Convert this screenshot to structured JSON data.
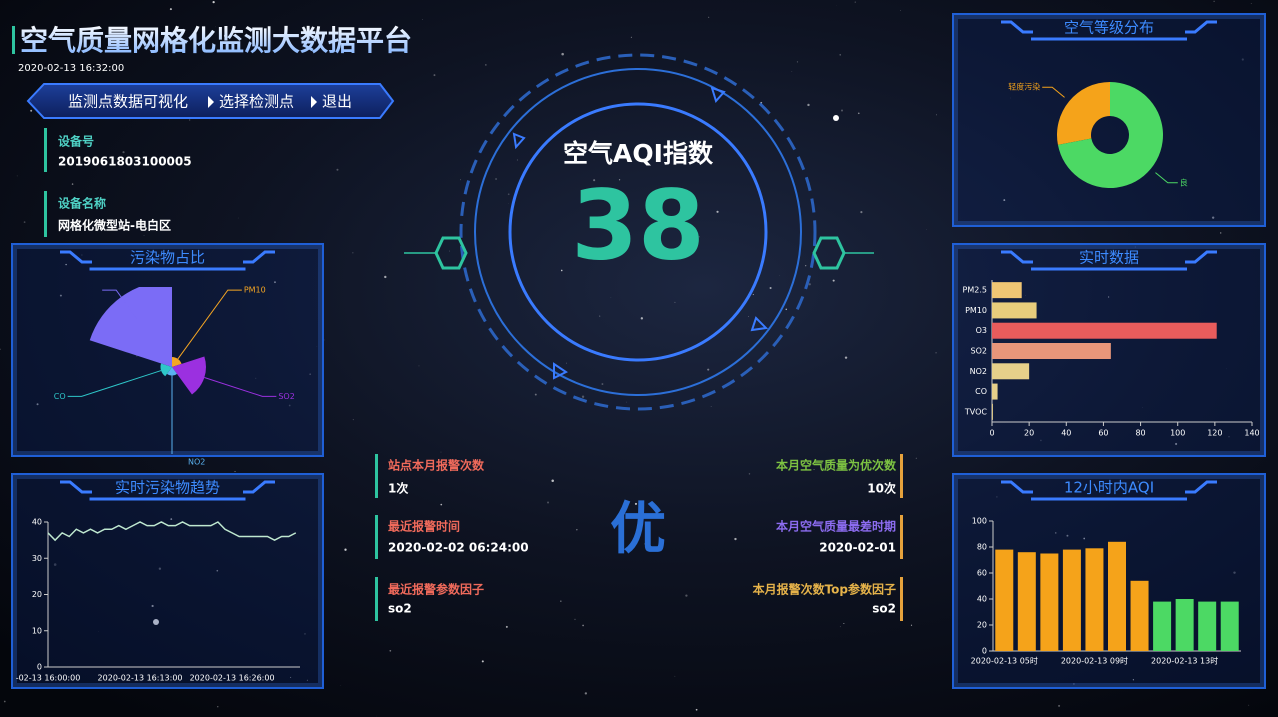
{
  "header": {
    "title": "空气质量网格化监测大数据平台",
    "datetime": "2020-02-13 16:32:00"
  },
  "nav": [
    "监测点数据可视化",
    "选择检测点",
    "退出"
  ],
  "device": [
    {
      "label": "设备号",
      "value": "2019061803100005"
    },
    {
      "label": "设备名称",
      "value": "网格化微型站-电白区"
    }
  ],
  "aqi": {
    "title": "空气AQI指数",
    "value": 38,
    "level": "优"
  },
  "alarm_stats": [
    {
      "label": "站点本月报警次数",
      "value": "1次"
    },
    {
      "label": "最近报警时间",
      "value": "2020-02-02 06:24:00"
    },
    {
      "label": "最近报警参数因子",
      "value": "so2"
    }
  ],
  "quality_stats": [
    {
      "label": "本月空气质量为优次数",
      "value": "10次"
    },
    {
      "label": "本月空气质量最差时期",
      "value": "2020-02-01"
    },
    {
      "label": "本月报警次数Top参数因子",
      "value": "so2"
    }
  ],
  "chart_data": [
    {
      "type": "donut",
      "title": "空气等级分布",
      "categories": [
        "轻度污染",
        "良"
      ],
      "values": [
        28,
        72
      ],
      "colors": [
        "#f5a31a",
        "#4cd964"
      ]
    },
    {
      "type": "barh",
      "title": "实时数据",
      "categories": [
        "PM2.5",
        "PM10",
        "O3",
        "SO2",
        "NO2",
        "CO",
        "TVOC"
      ],
      "values": [
        16,
        24,
        121,
        64,
        20,
        3,
        0.5
      ],
      "colors": [
        "#f0c674",
        "#e8cd7c",
        "#e85c5c",
        "#e8967a",
        "#e6d08a",
        "#e6cf8a",
        "#e6cf8a"
      ],
      "xlim": [
        0,
        140
      ],
      "xticks": [
        0,
        20,
        40,
        60,
        80,
        100,
        120,
        140
      ]
    },
    {
      "type": "bar",
      "title": "12小时内AQI",
      "categories": [
        "2020-02-13 05时",
        null,
        null,
        null,
        "2020-02-13 09时",
        null,
        null,
        null,
        "2020-02-13 13时",
        null,
        null
      ],
      "values": [
        78,
        76,
        75,
        78,
        79,
        84,
        54,
        38,
        40,
        38,
        38
      ],
      "colors": [
        "#f5a31a",
        "#f5a31a",
        "#f5a31a",
        "#f5a31a",
        "#f5a31a",
        "#f5a31a",
        "#f5a31a",
        "#4cd964",
        "#4cd964",
        "#4cd964",
        "#4cd964"
      ],
      "ylim": [
        0,
        100
      ],
      "yticks": [
        0,
        20,
        40,
        60,
        80,
        100
      ]
    },
    {
      "type": "rose",
      "title": "污染物占比",
      "categories": [
        null,
        "PM10",
        "SO2",
        "NO2",
        "CO"
      ],
      "values": [
        110,
        8,
        40,
        6,
        10
      ],
      "colors": [
        "#7b6cf6",
        "#f5a623",
        "#9b30e0",
        "#5ab1ef",
        "#2ec7c9"
      ]
    },
    {
      "type": "line",
      "title": "实时污染物趋势",
      "categories": [
        "-02-13 16:00:00",
        null,
        null,
        null,
        null,
        null,
        null,
        null,
        null,
        null,
        null,
        null,
        null,
        "2020-02-13 16:13:00",
        null,
        null,
        null,
        null,
        null,
        null,
        null,
        null,
        null,
        null,
        null,
        null,
        "2020-02-13 16:26:00",
        null,
        null,
        null,
        null,
        null,
        null,
        null,
        null,
        null
      ],
      "values": [
        37,
        35,
        37,
        36,
        38,
        37,
        38,
        37,
        38,
        38,
        39,
        38,
        39,
        40,
        39,
        39,
        40,
        39,
        39,
        40,
        39,
        39,
        39,
        39,
        40,
        38,
        37,
        36,
        36,
        36,
        36,
        36,
        35,
        36,
        36,
        37
      ],
      "color": "#bfe8d0",
      "ylim": [
        0,
        40
      ],
      "yticks": [
        0,
        10,
        20,
        30,
        40
      ]
    }
  ]
}
